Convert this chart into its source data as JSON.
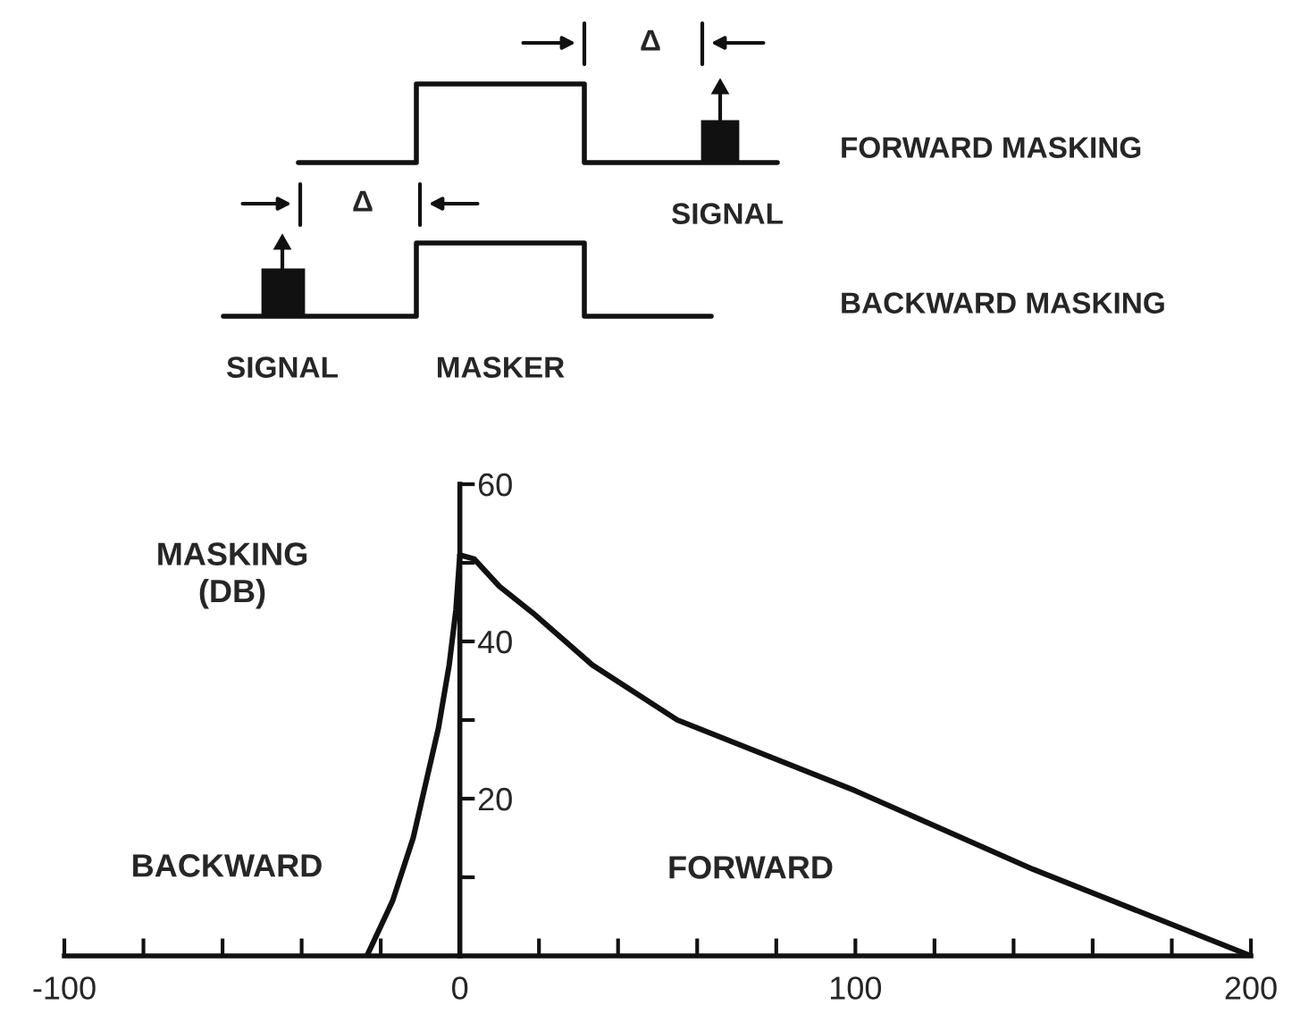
{
  "chart_data": {
    "type": "line",
    "ylabel": "MASKING\n(DB)",
    "annotations": [
      "BACKWARD",
      "FORWARD",
      "FORWARD MASKING",
      "BACKWARD MASKING",
      "SIGNAL",
      "SIGNAL",
      "MASKER",
      "Δ",
      "Δ"
    ],
    "series": [
      {
        "color": "#111111",
        "x": [
          -23.5,
          -17,
          -11.8,
          -5.4,
          -2.7,
          -1,
          0
        ],
        "values": [
          0,
          7,
          15,
          29,
          37,
          44,
          51
        ]
      },
      {
        "color": "#111111",
        "x": [
          0,
          3.6,
          10,
          18.5,
          33.5,
          55,
          100,
          145,
          200
        ],
        "values": [
          51,
          50.5,
          47,
          43.6,
          37,
          30,
          21,
          11,
          0
        ]
      }
    ],
    "xlim": [
      -100,
      200
    ],
    "ylim": [
      0,
      60
    ],
    "xticks": [
      -100,
      {
        "value": -80,
        "label": null
      },
      {
        "value": -60,
        "label": null
      },
      {
        "value": -40,
        "label": null
      },
      {
        "value": -20,
        "label": null
      },
      0,
      {
        "value": 20,
        "label": null
      },
      {
        "value": 40,
        "label": null
      },
      {
        "value": 60,
        "label": null
      },
      {
        "value": 80,
        "label": null
      },
      100,
      {
        "value": 120,
        "label": null
      },
      {
        "value": 140,
        "label": null
      },
      {
        "value": 160,
        "label": null
      },
      {
        "value": 180,
        "label": null
      },
      200
    ],
    "yticks": [
      {
        "value": 10,
        "label": null
      },
      20,
      {
        "value": 30,
        "label": null
      },
      40,
      {
        "value": 50,
        "label": null
      },
      60
    ],
    "grid": false
  }
}
